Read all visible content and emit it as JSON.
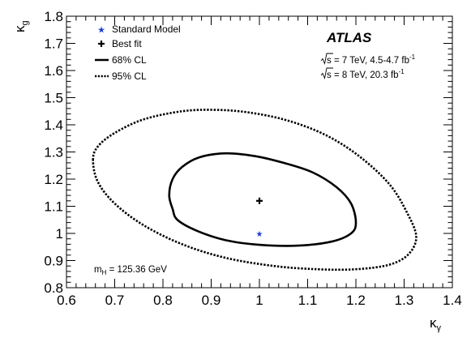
{
  "chart_data": {
    "type": "contour",
    "experiment_label": "ATLAS",
    "energy_lines": [
      {
        "sqrt_s": "s",
        "text": " = 7 TeV, 4.5-4.7 fb",
        "sup": "-1"
      },
      {
        "sqrt_s": "s",
        "text": " = 8 TeV, 20.3 fb",
        "sup": "-1"
      }
    ],
    "mass_label": {
      "main": "m",
      "sub": "H",
      "rest": " = 125.36 GeV"
    },
    "xlabel": {
      "main": "κ",
      "sub": "γ"
    },
    "ylabel": {
      "main": "κ",
      "sub": "g"
    },
    "xlim": [
      0.6,
      1.4
    ],
    "ylim": [
      0.8,
      1.8
    ],
    "x_ticks": [
      "0.6",
      "0.7",
      "0.8",
      "0.9",
      "1",
      "1.1",
      "1.2",
      "1.3",
      "1.4"
    ],
    "y_ticks": [
      "0.8",
      "0.9",
      "1",
      "1.1",
      "1.2",
      "1.3",
      "1.4",
      "1.5",
      "1.6",
      "1.7",
      "1.8"
    ],
    "legend": {
      "position": "top-left",
      "entries": [
        {
          "label": "Standard Model",
          "marker": "star",
          "color": "#1f3fd0"
        },
        {
          "label": "Best fit",
          "marker": "cross",
          "color": "#000000"
        },
        {
          "label": "68% CL",
          "line": "solid"
        },
        {
          "label": "95% CL",
          "line": "dotted"
        }
      ]
    },
    "standard_model_point": {
      "x": 1.0,
      "y": 1.0
    },
    "best_fit_point": {
      "x": 1.0,
      "y": 1.12
    },
    "contours": [
      {
        "label": "68% CL",
        "style": "solid",
        "points": [
          [
            0.82,
            1.09
          ],
          [
            0.813,
            1.14
          ],
          [
            0.82,
            1.2
          ],
          [
            0.84,
            1.245
          ],
          [
            0.875,
            1.28
          ],
          [
            0.93,
            1.295
          ],
          [
            0.99,
            1.285
          ],
          [
            1.05,
            1.26
          ],
          [
            1.11,
            1.225
          ],
          [
            1.16,
            1.17
          ],
          [
            1.19,
            1.11
          ],
          [
            1.2,
            1.04
          ],
          [
            1.19,
            1.0
          ],
          [
            1.15,
            0.97
          ],
          [
            1.08,
            0.955
          ],
          [
            1.0,
            0.958
          ],
          [
            0.93,
            0.975
          ],
          [
            0.87,
            1.01
          ],
          [
            0.83,
            1.05
          ],
          [
            0.82,
            1.09
          ]
        ]
      },
      {
        "label": "95% CL",
        "style": "dotted",
        "points": [
          [
            0.655,
            1.27
          ],
          [
            0.665,
            1.32
          ],
          [
            0.7,
            1.37
          ],
          [
            0.76,
            1.42
          ],
          [
            0.84,
            1.45
          ],
          [
            0.91,
            1.455
          ],
          [
            0.98,
            1.445
          ],
          [
            1.06,
            1.415
          ],
          [
            1.14,
            1.36
          ],
          [
            1.21,
            1.28
          ],
          [
            1.27,
            1.18
          ],
          [
            1.305,
            1.08
          ],
          [
            1.325,
            0.99
          ],
          [
            1.31,
            0.925
          ],
          [
            1.27,
            0.885
          ],
          [
            1.2,
            0.868
          ],
          [
            1.12,
            0.868
          ],
          [
            1.03,
            0.88
          ],
          [
            0.93,
            0.91
          ],
          [
            0.84,
            0.96
          ],
          [
            0.76,
            1.03
          ],
          [
            0.7,
            1.11
          ],
          [
            0.665,
            1.19
          ],
          [
            0.655,
            1.27
          ]
        ]
      }
    ]
  }
}
